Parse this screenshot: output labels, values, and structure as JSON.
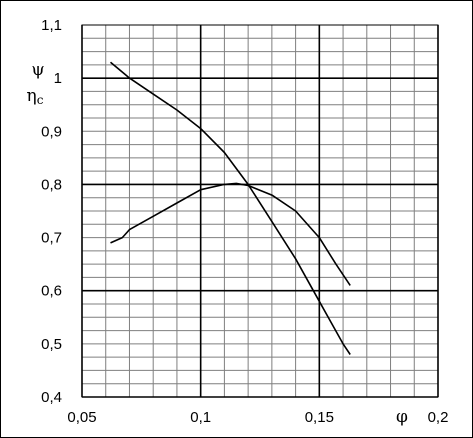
{
  "chart_data": {
    "type": "line",
    "title": "",
    "xlabel": "φ",
    "ylabel_top": "ψ",
    "ylabel_bottom": "η",
    "ylabel_bottom_sub": "c",
    "xlim": [
      0.05,
      0.2
    ],
    "ylim": [
      0.4,
      1.1
    ],
    "grid": true,
    "legend": "none",
    "x_ticks": [
      {
        "value": 0.05,
        "label": "0,05"
      },
      {
        "value": 0.1,
        "label": "0,1"
      },
      {
        "value": 0.15,
        "label": "0,15"
      },
      {
        "value": 0.2,
        "label": "0,2"
      }
    ],
    "y_ticks": [
      {
        "value": 0.4,
        "label": "0,4"
      },
      {
        "value": 0.5,
        "label": "0,5"
      },
      {
        "value": 0.6,
        "label": "0,6"
      },
      {
        "value": 0.7,
        "label": "0,7"
      },
      {
        "value": 0.8,
        "label": "0,8"
      },
      {
        "value": 0.9,
        "label": "0,9"
      },
      {
        "value": 1.0,
        "label": "1"
      },
      {
        "value": 1.1,
        "label": "1,1"
      }
    ],
    "series": [
      {
        "x": [
          0.062,
          0.07,
          0.08,
          0.09,
          0.1,
          0.11,
          0.12,
          0.13,
          0.14,
          0.15,
          0.155,
          0.16,
          0.163
        ],
        "values": [
          1.03,
          1.0,
          0.97,
          0.94,
          0.905,
          0.86,
          0.8,
          0.73,
          0.66,
          0.58,
          0.54,
          0.5,
          0.48
        ]
      },
      {
        "x": [
          0.062,
          0.067,
          0.07,
          0.08,
          0.09,
          0.1,
          0.11,
          0.115,
          0.12,
          0.13,
          0.14,
          0.15,
          0.157,
          0.163
        ],
        "values": [
          0.69,
          0.7,
          0.715,
          0.74,
          0.765,
          0.79,
          0.8,
          0.802,
          0.798,
          0.78,
          0.75,
          0.7,
          0.65,
          0.61
        ]
      }
    ]
  }
}
